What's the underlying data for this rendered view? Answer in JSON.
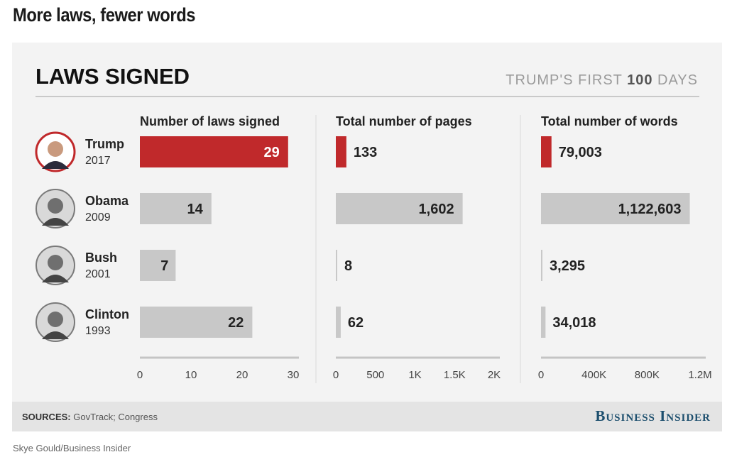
{
  "headline": "More laws, fewer words",
  "card": {
    "title": "LAWS SIGNED",
    "subtitle_pre": "TRUMP'S FIRST ",
    "subtitle_num": "100",
    "subtitle_post": " DAYS"
  },
  "footer": {
    "sources_label": "SOURCES:",
    "sources_text": " GovTrack; Congress",
    "brand": "Business Insider"
  },
  "credit": "Skye Gould/Business Insider",
  "colors": {
    "highlight": "#c0292b",
    "bar": "#c8c8c8",
    "text": "#222222"
  },
  "chart_data": {
    "type": "bar",
    "orientation": "horizontal",
    "categories": [
      {
        "name": "Trump",
        "year": "2017",
        "icon": "trump-portrait"
      },
      {
        "name": "Obama",
        "year": "2009",
        "icon": "obama-portrait"
      },
      {
        "name": "Bush",
        "year": "2001",
        "icon": "bush-portrait"
      },
      {
        "name": "Clinton",
        "year": "1993",
        "icon": "clinton-portrait"
      }
    ],
    "panels": [
      {
        "title": "Number of laws signed",
        "values": [
          29,
          14,
          7,
          22
        ],
        "labels": [
          "29",
          "14",
          "7",
          "22"
        ],
        "xlim": [
          0,
          30
        ],
        "ticks": [
          0,
          10,
          20,
          30
        ],
        "tick_labels": [
          "0",
          "10",
          "20",
          "30"
        ]
      },
      {
        "title": "Total number of pages",
        "values": [
          133,
          1602,
          8,
          62
        ],
        "labels": [
          "133",
          "1,602",
          "8",
          "62"
        ],
        "xlim": [
          0,
          2000
        ],
        "ticks": [
          0,
          500,
          1000,
          1500,
          2000
        ],
        "tick_labels": [
          "0",
          "500",
          "1K",
          "1.5K",
          "2K"
        ]
      },
      {
        "title": "Total number of words",
        "values": [
          79003,
          1122603,
          3295,
          34018
        ],
        "labels": [
          "79,003",
          "1,122,603",
          "3,295",
          "34,018"
        ],
        "xlim": [
          0,
          1200000
        ],
        "ticks": [
          0,
          400000,
          800000,
          1200000
        ],
        "tick_labels": [
          "0",
          "400K",
          "800K",
          "1.2M"
        ]
      }
    ],
    "highlight_index": 0
  }
}
